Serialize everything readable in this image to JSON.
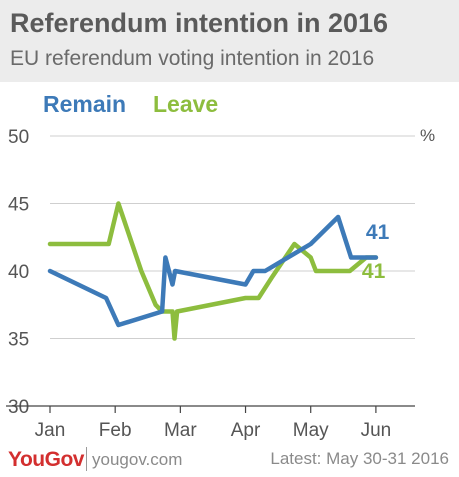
{
  "header": {
    "title": "Referendum intention in 2016",
    "subtitle": "EU referendum voting intention in 2016"
  },
  "footer": {
    "logo": "YouGov",
    "site": "yougov.com",
    "latest": "Latest: May 30-31 2016"
  },
  "colors": {
    "remain": "#3d7ab8",
    "leave": "#8dbd3e",
    "grid": "#cfcfcf",
    "axis": "#444444",
    "tick_text": "#555555",
    "header_bg": "#ececec",
    "brand": "#d32f2f"
  },
  "chart_data": {
    "type": "line",
    "title": "Referendum intention in 2016",
    "subtitle": "EU referendum voting intention in 2016",
    "y_unit_label": "%",
    "ylim": [
      30,
      50
    ],
    "yticks": [
      30,
      35,
      40,
      45,
      50
    ],
    "xlim": [
      0,
      5.6
    ],
    "xticks": [
      {
        "label": "Jan",
        "value": 0
      },
      {
        "label": "Feb",
        "value": 1
      },
      {
        "label": "Mar",
        "value": 2
      },
      {
        "label": "Apr",
        "value": 3
      },
      {
        "label": "May",
        "value": 4
      },
      {
        "label": "Jun",
        "value": 5
      }
    ],
    "grid": true,
    "legend": "top-left",
    "series": [
      {
        "name": "Remain",
        "color": "#3d7ab8",
        "end_label": "41",
        "points": [
          [
            0,
            40
          ],
          [
            0.86,
            38
          ],
          [
            1.05,
            36
          ],
          [
            1.72,
            37
          ],
          [
            1.77,
            41
          ],
          [
            1.88,
            39
          ],
          [
            1.92,
            40
          ],
          [
            3.0,
            39
          ],
          [
            3.12,
            40
          ],
          [
            3.3,
            40
          ],
          [
            4.0,
            42
          ],
          [
            4.42,
            44
          ],
          [
            4.62,
            41
          ],
          [
            5.0,
            41
          ]
        ]
      },
      {
        "name": "Leave",
        "color": "#8dbd3e",
        "end_label": "41",
        "points": [
          [
            0,
            42
          ],
          [
            0.9,
            42
          ],
          [
            1.05,
            45
          ],
          [
            1.4,
            40
          ],
          [
            1.62,
            37.5
          ],
          [
            1.72,
            37
          ],
          [
            1.88,
            37
          ],
          [
            1.91,
            35
          ],
          [
            1.95,
            37
          ],
          [
            3.0,
            38
          ],
          [
            3.2,
            38
          ],
          [
            3.4,
            39.5
          ],
          [
            3.75,
            42
          ],
          [
            4.0,
            41
          ],
          [
            4.08,
            40
          ],
          [
            4.6,
            40
          ],
          [
            4.85,
            41
          ],
          [
            5.0,
            41
          ]
        ]
      }
    ]
  }
}
